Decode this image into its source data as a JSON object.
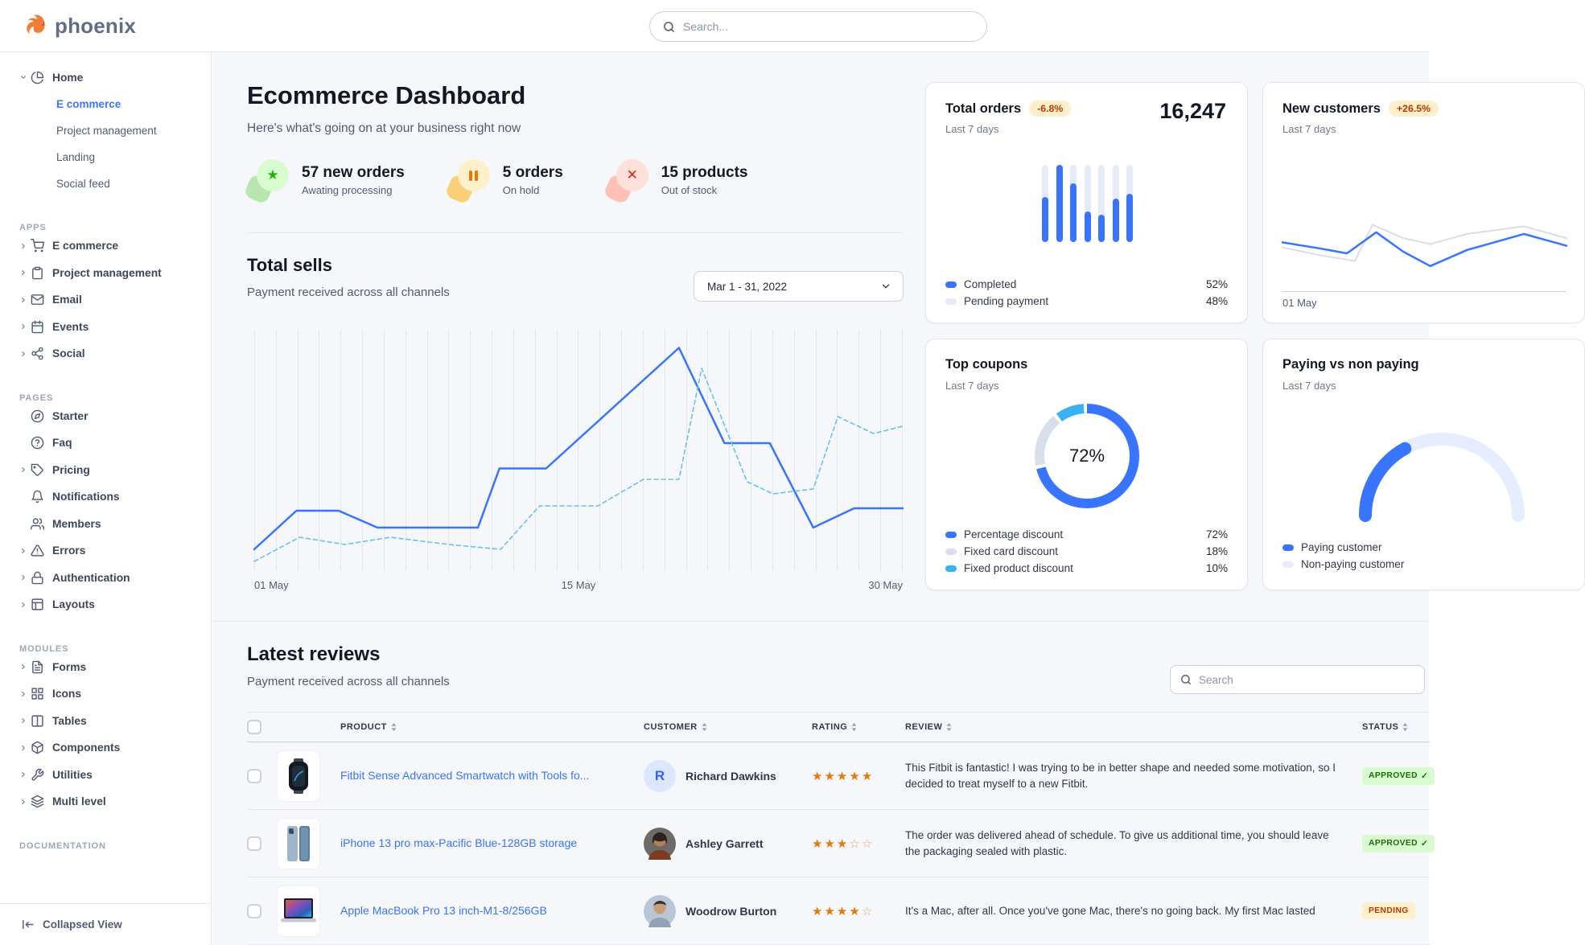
{
  "colors": {
    "primary": "#3874ff",
    "warning_badge_bg": "#ffefca",
    "warning_badge_fg": "#bc3803"
  },
  "brand": {
    "name": "phoenix"
  },
  "navbar": {
    "search_placeholder": "Search..."
  },
  "sidebar": {
    "home": {
      "icon": "pie",
      "label": "Home",
      "children": [
        {
          "label": "E commerce",
          "active": true
        },
        {
          "label": "Project management",
          "active": false
        },
        {
          "label": "Landing",
          "active": false
        },
        {
          "label": "Social feed",
          "active": false
        }
      ]
    },
    "groups": [
      {
        "label": "APPS",
        "items": [
          {
            "icon": "cart",
            "label": "E commerce",
            "caret": true
          },
          {
            "icon": "clipboard",
            "label": "Project management",
            "caret": true
          },
          {
            "icon": "mail",
            "label": "Email",
            "caret": true
          },
          {
            "icon": "calendar",
            "label": "Events",
            "caret": true
          },
          {
            "icon": "share",
            "label": "Social",
            "caret": true
          }
        ]
      },
      {
        "label": "PAGES",
        "items": [
          {
            "icon": "compass",
            "label": "Starter",
            "caret": false
          },
          {
            "icon": "help",
            "label": "Faq",
            "caret": false
          },
          {
            "icon": "tag",
            "label": "Pricing",
            "caret": true
          },
          {
            "icon": "bell",
            "label": "Notifications",
            "caret": false
          },
          {
            "icon": "users",
            "label": "Members",
            "caret": false
          },
          {
            "icon": "alert",
            "label": "Errors",
            "caret": true
          },
          {
            "icon": "lock",
            "label": "Authentication",
            "caret": true
          },
          {
            "icon": "layout",
            "label": "Layouts",
            "caret": true
          }
        ]
      },
      {
        "label": "MODULES",
        "items": [
          {
            "icon": "file",
            "label": "Forms",
            "caret": true
          },
          {
            "icon": "grid",
            "label": "Icons",
            "caret": true
          },
          {
            "icon": "columns",
            "label": "Tables",
            "caret": true
          },
          {
            "icon": "box",
            "label": "Components",
            "caret": true
          },
          {
            "icon": "wrench",
            "label": "Utilities",
            "caret": true
          },
          {
            "icon": "layers",
            "label": "Multi level",
            "caret": true
          }
        ]
      },
      {
        "label": "DOCUMENTATION",
        "items": []
      }
    ],
    "collapse_label": "Collapsed View"
  },
  "page": {
    "title": "Ecommerce Dashboard",
    "subtitle": "Here's what's going on at your business right now"
  },
  "stats": [
    {
      "icon": "star",
      "value": "57 new orders",
      "label": "Awating processing",
      "fg": "#25b003",
      "bg": "#d9fbd0",
      "blob": "#b9e6ae"
    },
    {
      "icon": "pause",
      "value": "5 orders",
      "label": "On hold",
      "fg": "#e5780b",
      "bg": "#ffefca",
      "blob": "#f9d077"
    },
    {
      "icon": "x",
      "value": "15 products",
      "label": "Out of stock",
      "fg": "#ed2000",
      "bg": "#ffe0db",
      "blob": "#ffc0b8"
    }
  ],
  "total_sells": {
    "title": "Total sells",
    "subtitle": "Payment received across all channels",
    "date_range": "Mar 1 - 31, 2022"
  },
  "chart_data": [
    {
      "type": "line",
      "title": "Total sells",
      "x_labels": [
        "01 May",
        "15 May",
        "30 May"
      ],
      "gridlines": 31,
      "legend_position": "none",
      "grid": "vertical-only",
      "series": [
        {
          "name": "current",
          "style": "solid",
          "color": "#3874ff",
          "width": 2.5,
          "points": [
            [
              0,
              0.91
            ],
            [
              0.065,
              0.75
            ],
            [
              0.13,
              0.75
            ],
            [
              0.19,
              0.82
            ],
            [
              0.345,
              0.82
            ],
            [
              0.378,
              0.575
            ],
            [
              0.45,
              0.575
            ],
            [
              0.655,
              0.075
            ],
            [
              0.725,
              0.47
            ],
            [
              0.795,
              0.47
            ],
            [
              0.862,
              0.82
            ],
            [
              0.925,
              0.74
            ],
            [
              1,
              0.74
            ]
          ]
        },
        {
          "name": "previous",
          "style": "dashed",
          "color": "#66c2f0",
          "width": 1.6,
          "points": [
            [
              0,
              0.96
            ],
            [
              0.07,
              0.86
            ],
            [
              0.14,
              0.89
            ],
            [
              0.21,
              0.86
            ],
            [
              0.3,
              0.89
            ],
            [
              0.38,
              0.91
            ],
            [
              0.44,
              0.73
            ],
            [
              0.53,
              0.73
            ],
            [
              0.6,
              0.62
            ],
            [
              0.655,
              0.62
            ],
            [
              0.69,
              0.16
            ],
            [
              0.76,
              0.63
            ],
            [
              0.8,
              0.68
            ],
            [
              0.862,
              0.66
            ],
            [
              0.9,
              0.36
            ],
            [
              0.955,
              0.43
            ],
            [
              1,
              0.4
            ]
          ]
        }
      ]
    },
    {
      "type": "bar",
      "title": "Total orders",
      "values_pct": [
        58,
        100,
        76,
        40,
        35,
        56,
        62
      ],
      "bar_color": "#3874ff",
      "track_color": "#e6ebfa"
    },
    {
      "type": "line",
      "title": "New customers",
      "x_labels": [
        "01 May"
      ],
      "series": [
        {
          "name": "previous",
          "color": "#d8dde8",
          "width": 2,
          "points": [
            [
              0,
              0.54
            ],
            [
              0.13,
              0.63
            ],
            [
              0.255,
              0.7
            ],
            [
              0.317,
              0.27
            ],
            [
              0.425,
              0.43
            ],
            [
              0.52,
              0.5
            ],
            [
              0.65,
              0.38
            ],
            [
              0.85,
              0.29
            ],
            [
              1,
              0.43
            ]
          ]
        },
        {
          "name": "current",
          "color": "#3874ff",
          "width": 2.5,
          "points": [
            [
              0,
              0.48
            ],
            [
              0.13,
              0.55
            ],
            [
              0.227,
              0.61
            ],
            [
              0.33,
              0.36
            ],
            [
              0.425,
              0.59
            ],
            [
              0.52,
              0.76
            ],
            [
              0.65,
              0.57
            ],
            [
              0.85,
              0.38
            ],
            [
              1,
              0.52
            ]
          ]
        }
      ]
    },
    {
      "type": "pie",
      "title": "Top coupons",
      "center_label": "72%",
      "slices": [
        {
          "label": "Percentage discount",
          "value": 72,
          "color": "#3874ff"
        },
        {
          "label": "Fixed card discount",
          "value": 18,
          "color": "#d8dfeb"
        },
        {
          "label": "Fixed product discount",
          "value": 10,
          "color": "#38b2f0"
        }
      ]
    },
    {
      "type": "gauge",
      "title": "Paying vs non paying",
      "value_pct": 34,
      "value_color": "#3874ff",
      "track_color": "#e5edff"
    }
  ],
  "cards": {
    "total_orders": {
      "title": "Total orders",
      "badge": "-6.8%",
      "period": "Last 7 days",
      "value": "16,247",
      "legend": [
        {
          "label": "Completed",
          "value": "52%",
          "color": "#3874ff"
        },
        {
          "label": "Pending payment",
          "value": "48%",
          "color": "#e5e9f8"
        }
      ]
    },
    "new_customers": {
      "title": "New customers",
      "badge": "+26.5%",
      "period": "Last 7 days",
      "x_label": "01 May"
    },
    "top_coupons": {
      "title": "Top coupons",
      "period": "Last 7 days",
      "center_label": "72%",
      "legend": [
        {
          "label": "Percentage discount",
          "value": "72%",
          "color": "#3874ff"
        },
        {
          "label": "Fixed card discount",
          "value": "18%",
          "color": "#d8dfeb"
        },
        {
          "label": "Fixed product discount",
          "value": "10%",
          "color": "#38b2f0"
        }
      ]
    },
    "paying": {
      "title": "Paying vs non paying",
      "period": "Last 7 days",
      "legend": [
        {
          "label": "Paying customer",
          "value": "",
          "color": "#3874ff"
        },
        {
          "label": "Non-paying customer",
          "value": "",
          "color": "#e5edff"
        }
      ]
    }
  },
  "reviews": {
    "title": "Latest reviews",
    "subtitle": "Payment received across all channels",
    "search_placeholder": "Search",
    "columns": [
      "PRODUCT",
      "CUSTOMER",
      "RATING",
      "REVIEW",
      "STATUS"
    ],
    "rows": [
      {
        "product": "Fitbit Sense Advanced Smartwatch with Tools fo...",
        "thumb": "smartwatch",
        "customer": "Richard Dawkins",
        "avatar_type": "initial",
        "avatar_text": "R",
        "rating": 5,
        "review": "This Fitbit is fantastic! I was trying to be in better shape and needed some motivation, so I decided to treat myself to a new Fitbit.",
        "status": "APPROVED"
      },
      {
        "product": "iPhone 13 pro max-Pacific Blue-128GB storage",
        "thumb": "phone",
        "customer": "Ashley Garrett",
        "avatar_type": "photo-female",
        "avatar_text": "",
        "rating": 3,
        "review": "The order was delivered ahead of schedule. To give us additional time, you should leave the packaging sealed with plastic.",
        "status": "APPROVED"
      },
      {
        "product": "Apple MacBook Pro 13 inch-M1-8/256GB",
        "thumb": "laptop",
        "customer": "Woodrow Burton",
        "avatar_type": "photo-male",
        "avatar_text": "",
        "rating": 4,
        "review": "It's a Mac, after all. Once you've gone Mac, there's no going back. My first Mac lasted",
        "status": "PENDING"
      }
    ],
    "status_styles": {
      "APPROVED": {
        "bg": "#d9fbd0",
        "fg": "#1c6c09",
        "icon": "check"
      },
      "PENDING": {
        "bg": "#ffefca",
        "fg": "#bc3803",
        "icon": "clock"
      }
    }
  }
}
